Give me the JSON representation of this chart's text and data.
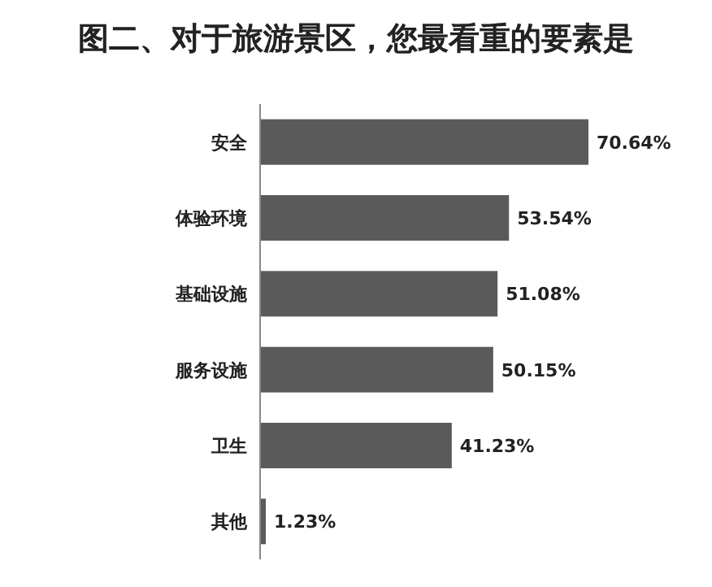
{
  "chart_data": {
    "type": "bar",
    "orientation": "horizontal",
    "title": "图二、对于旅游景区，您最看重的要素是",
    "categories": [
      "安全",
      "体验环境",
      "基础设施",
      "服务设施",
      "卫生",
      "其他"
    ],
    "values": [
      70.64,
      53.54,
      51.08,
      50.15,
      41.23,
      1.23
    ],
    "value_labels": [
      "70.64%",
      "53.54%",
      "51.08%",
      "50.15%",
      "41.23%",
      "1.23%"
    ],
    "color": "#5a5a5a"
  }
}
